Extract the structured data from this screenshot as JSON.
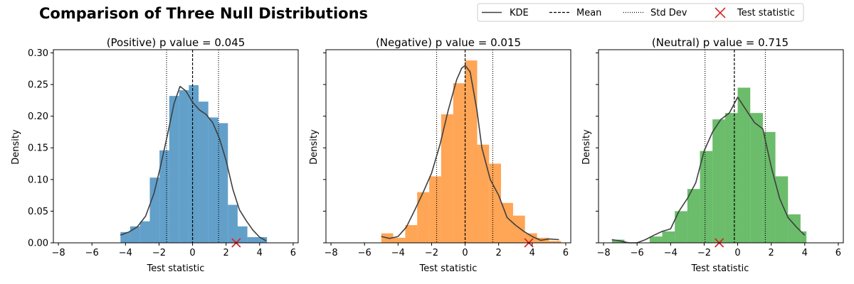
{
  "figure": {
    "title": "Comparison of Three Null Distributions"
  },
  "legend": {
    "placement": "top-right",
    "items": [
      {
        "label": "KDE",
        "style": "solid"
      },
      {
        "label": "Mean",
        "style": "dashed"
      },
      {
        "label": "Std Dev",
        "style": "dotted"
      },
      {
        "label": "Test statistic",
        "style": "x-marker"
      }
    ]
  },
  "colors": {
    "positive": "#1f77b4",
    "negative": "#ff7f0e",
    "neutral": "#2ca02c",
    "kde": "#3f3f3f",
    "marker": "#d62728"
  },
  "chart_data": [
    {
      "type": "bar",
      "title": "(Positive) p value = 0.045",
      "xlabel": "Test statistic",
      "ylabel": "Density",
      "xlim": [
        -8.3,
        6.3
      ],
      "ylim": [
        0,
        0.305
      ],
      "xticks": [
        -8,
        -6,
        -4,
        -2,
        0,
        2,
        4,
        6
      ],
      "yticks": [
        0.0,
        0.05,
        0.1,
        0.15,
        0.2,
        0.25,
        0.3
      ],
      "ytick_labels": [
        "0.00",
        "0.05",
        "0.10",
        "0.15",
        "0.20",
        "0.25",
        "0.30"
      ],
      "bin_edges": [
        -4.3,
        -3.72,
        -3.13,
        -2.55,
        -1.97,
        -1.39,
        -0.8,
        -0.22,
        0.36,
        0.94,
        1.53,
        2.11,
        2.69,
        3.27,
        3.86,
        4.44
      ],
      "densities": [
        0.017,
        0.026,
        0.034,
        0.103,
        0.146,
        0.232,
        0.241,
        0.249,
        0.223,
        0.198,
        0.189,
        0.06,
        0.026,
        0.009,
        0.009
      ],
      "kde_x": [
        -4.3,
        -3.8,
        -3.3,
        -2.8,
        -2.3,
        -1.9,
        -1.5,
        -1.1,
        -0.75,
        -0.4,
        0.0,
        0.4,
        0.8,
        1.2,
        1.6,
        2.0,
        2.4,
        2.8,
        3.2,
        3.6,
        4.0,
        4.4
      ],
      "kde_y": [
        0.012,
        0.017,
        0.025,
        0.042,
        0.078,
        0.122,
        0.17,
        0.22,
        0.247,
        0.24,
        0.222,
        0.21,
        0.203,
        0.19,
        0.165,
        0.13,
        0.085,
        0.052,
        0.035,
        0.02,
        0.009,
        0.003
      ],
      "mean": 0.0,
      "std_lines": [
        -1.55,
        1.55
      ],
      "test_statistic": 2.6,
      "color_key": "positive"
    },
    {
      "type": "bar",
      "title": "(Negative) p value = 0.015",
      "xlabel": "Test statistic",
      "ylabel": "Density",
      "xlim": [
        -8.3,
        6.3
      ],
      "ylim": [
        0,
        0.305
      ],
      "xticks": [
        -8,
        -6,
        -4,
        -2,
        0,
        2,
        4,
        6
      ],
      "yticks": [
        0.0,
        0.05,
        0.1,
        0.15,
        0.2,
        0.25,
        0.3
      ],
      "ytick_labels": [],
      "bin_edges": [
        -5.0,
        -4.29,
        -3.57,
        -2.86,
        -2.14,
        -1.43,
        -0.71,
        0.0,
        0.72,
        1.43,
        2.14,
        2.86,
        3.57,
        4.29,
        5.0,
        5.72
      ],
      "densities": [
        0.015,
        0.008,
        0.028,
        0.08,
        0.105,
        0.203,
        0.252,
        0.288,
        0.155,
        0.125,
        0.063,
        0.043,
        0.015,
        0.008,
        0.003
      ],
      "kde_x": [
        -5.0,
        -4.5,
        -4.0,
        -3.5,
        -3.0,
        -2.5,
        -2.0,
        -1.5,
        -1.0,
        -0.5,
        -0.2,
        0.0,
        0.3,
        0.7,
        1.0,
        1.5,
        2.0,
        2.5,
        3.0,
        3.5,
        4.0,
        4.5,
        5.0,
        5.6
      ],
      "kde_y": [
        0.01,
        0.007,
        0.01,
        0.025,
        0.052,
        0.08,
        0.11,
        0.155,
        0.21,
        0.258,
        0.276,
        0.28,
        0.27,
        0.21,
        0.15,
        0.1,
        0.075,
        0.04,
        0.028,
        0.018,
        0.01,
        0.004,
        0.006,
        0.005
      ],
      "mean": 0.0,
      "std_lines": [
        -1.7,
        1.65
      ],
      "test_statistic": 3.8,
      "color_key": "negative"
    },
    {
      "type": "bar",
      "title": "(Neutral) p value = 0.715",
      "xlabel": "Test statistic",
      "ylabel": "Density",
      "xlim": [
        -8.3,
        6.3
      ],
      "ylim": [
        0,
        0.305
      ],
      "xticks": [
        -8,
        -6,
        -4,
        -2,
        0,
        2,
        4,
        6
      ],
      "yticks": [
        0.0,
        0.05,
        0.1,
        0.15,
        0.2,
        0.25,
        0.3
      ],
      "ytick_labels": [],
      "bin_edges": [
        -7.5,
        -6.75,
        -6.0,
        -5.25,
        -4.5,
        -3.75,
        -3.0,
        -2.25,
        -1.5,
        -0.75,
        0.0,
        0.75,
        1.5,
        2.25,
        3.0,
        3.75,
        4.1
      ],
      "densities": [
        0.005,
        0.0,
        0.0,
        0.01,
        0.018,
        0.05,
        0.085,
        0.145,
        0.195,
        0.205,
        0.245,
        0.205,
        0.175,
        0.105,
        0.045,
        0.018
      ],
      "kde_x": [
        -7.5,
        -7.0,
        -6.5,
        -6.0,
        -5.5,
        -5.0,
        -4.5,
        -4.0,
        -3.5,
        -3.0,
        -2.5,
        -2.0,
        -1.5,
        -1.0,
        -0.5,
        0.0,
        0.5,
        1.0,
        1.5,
        2.0,
        2.5,
        3.0,
        3.5,
        4.0
      ],
      "kde_y": [
        0.005,
        0.003,
        0.0,
        0.0,
        0.005,
        0.012,
        0.018,
        0.022,
        0.05,
        0.07,
        0.095,
        0.145,
        0.175,
        0.195,
        0.205,
        0.23,
        0.21,
        0.19,
        0.18,
        0.12,
        0.07,
        0.04,
        0.025,
        0.012
      ],
      "mean": -0.2,
      "std_lines": [
        -1.95,
        1.65
      ],
      "test_statistic": -1.1,
      "color_key": "neutral"
    }
  ]
}
